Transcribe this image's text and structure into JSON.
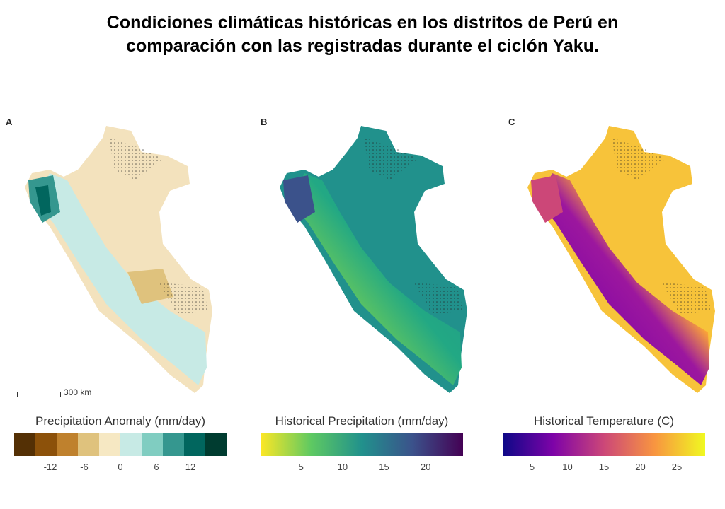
{
  "title_line1": "Condiciones climáticas históricas en los distritos de Perú en",
  "title_line2": "comparación con las registradas durante el ciclón Yaku.",
  "panels": [
    {
      "label": "A",
      "legend_title": "Precipitation Anomaly (mm/day)",
      "ticks": [
        "-12",
        "-6",
        "0",
        "6",
        "12"
      ],
      "colors": [
        "#543005",
        "#8c510a",
        "#bf812d",
        "#dfc27d",
        "#f6e8c3",
        "#c7eae5",
        "#80cdc1",
        "#35978f",
        "#01665e",
        "#003c30"
      ]
    },
    {
      "label": "B",
      "legend_title": "Historical Precipitation (mm/day)",
      "ticks": [
        "5",
        "10",
        "15",
        "20"
      ],
      "colors": [
        "#fde725",
        "#5ec962",
        "#21918c",
        "#3b528b",
        "#440154"
      ]
    },
    {
      "label": "C",
      "legend_title": "Historical Temperature (C)",
      "ticks": [
        "5",
        "10",
        "15",
        "20",
        "25"
      ],
      "colors": [
        "#0d0887",
        "#7e03a8",
        "#cc4778",
        "#f89540",
        "#f0f921"
      ]
    }
  ],
  "scale_label": "300 km"
}
